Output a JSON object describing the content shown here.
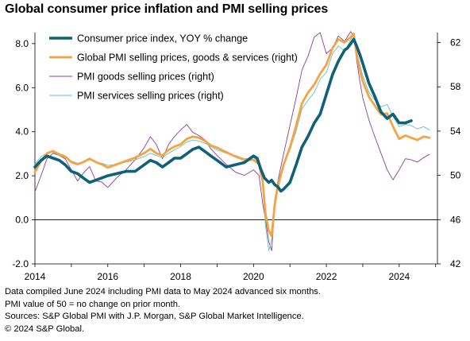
{
  "title": "Global consumer price inflation and PMI selling prices",
  "notes": [
    "Data compiled June 2024 including PMI data to May 2024 advanced six months.",
    "PMI value of 50 = no change on prior month.",
    "Sources: S&P Global PMI with J.P. Morgan, S&P Global Market Intelligence.",
    "© 2024 S&P Global."
  ],
  "colors": {
    "cpi": "#0e6177",
    "pmi": "#f5a343",
    "goods": "#8a3f9c",
    "services": "#63c3bd"
  },
  "chart_data": {
    "type": "line",
    "title": "Global consumer price inflation and PMI selling prices",
    "x_ticks": [
      "2014",
      "2016",
      "2018",
      "2020",
      "2022",
      "2024"
    ],
    "x_range": [
      2014.0,
      2025.05
    ],
    "y_left": {
      "range": [
        -2.0,
        8.5
      ],
      "ticks": [
        "-2.0",
        "0.0",
        "2.0",
        "4.0",
        "6.0",
        "8.0"
      ]
    },
    "y_right": {
      "range": [
        42,
        62.9
      ],
      "ticks": [
        "42",
        "46",
        "50",
        "54",
        "58",
        "62"
      ]
    },
    "legend_placement": "top-left",
    "grid": false,
    "series": [
      {
        "name": "Consumer price index, YOY % change",
        "axis": "left",
        "x": [
          2014.0,
          2014.17,
          2014.33,
          2014.5,
          2014.67,
          2014.83,
          2015.0,
          2015.17,
          2015.33,
          2015.5,
          2015.67,
          2015.83,
          2016.0,
          2016.25,
          2016.5,
          2016.75,
          2017.0,
          2017.17,
          2017.33,
          2017.5,
          2017.67,
          2017.83,
          2018.0,
          2018.17,
          2018.33,
          2018.5,
          2018.67,
          2018.83,
          2019.0,
          2019.25,
          2019.5,
          2019.75,
          2020.0,
          2020.1,
          2020.2,
          2020.3,
          2020.42,
          2020.5,
          2020.58,
          2020.67,
          2020.75,
          2020.83,
          2021.0,
          2021.17,
          2021.33,
          2021.5,
          2021.67,
          2021.83,
          2022.0,
          2022.17,
          2022.33,
          2022.5,
          2022.58,
          2022.67,
          2022.75,
          2022.83,
          2022.92,
          2023.0,
          2023.17,
          2023.33,
          2023.5,
          2023.67,
          2023.83,
          2024.0,
          2024.17,
          2024.33
        ],
        "values": [
          2.4,
          2.7,
          2.9,
          2.8,
          2.7,
          2.5,
          2.2,
          2.1,
          1.9,
          1.7,
          1.8,
          1.9,
          2.0,
          2.1,
          2.2,
          2.2,
          2.5,
          2.7,
          2.6,
          2.4,
          2.6,
          2.8,
          2.8,
          3.0,
          3.2,
          3.3,
          3.1,
          2.9,
          2.7,
          2.4,
          2.5,
          2.6,
          2.9,
          2.8,
          2.3,
          1.9,
          1.7,
          1.8,
          1.6,
          1.5,
          1.3,
          1.4,
          1.7,
          2.5,
          3.3,
          3.8,
          4.4,
          4.8,
          5.7,
          6.6,
          7.2,
          7.7,
          7.8,
          8.0,
          8.2,
          7.9,
          7.5,
          7.1,
          6.2,
          5.6,
          4.9,
          4.6,
          4.8,
          4.4,
          4.4,
          4.5
        ]
      },
      {
        "name": "Global PMI selling prices, goods & services (right)",
        "axis": "right",
        "x": [
          2014.0,
          2014.17,
          2014.33,
          2014.5,
          2014.67,
          2014.83,
          2015.0,
          2015.17,
          2015.33,
          2015.5,
          2015.67,
          2015.83,
          2016.0,
          2016.25,
          2016.5,
          2016.75,
          2017.0,
          2017.17,
          2017.33,
          2017.5,
          2017.67,
          2017.83,
          2018.0,
          2018.17,
          2018.33,
          2018.5,
          2018.67,
          2018.83,
          2019.0,
          2019.25,
          2019.5,
          2019.75,
          2020.0,
          2020.15,
          2020.25,
          2020.33,
          2020.42,
          2020.5,
          2020.58,
          2020.67,
          2020.83,
          2021.0,
          2021.17,
          2021.33,
          2021.5,
          2021.67,
          2021.83,
          2022.0,
          2022.17,
          2022.33,
          2022.5,
          2022.67,
          2022.75,
          2022.83,
          2022.92,
          2023.0,
          2023.17,
          2023.33,
          2023.5,
          2023.67,
          2023.83,
          2024.0,
          2024.17,
          2024.33,
          2024.5,
          2024.67,
          2024.83
        ],
        "values": [
          50.3,
          51.3,
          52.0,
          52.2,
          51.9,
          51.7,
          51.2,
          51.0,
          51.2,
          51.5,
          51.2,
          51.0,
          50.7,
          51.0,
          51.3,
          51.6,
          52.0,
          52.4,
          52.0,
          51.8,
          52.3,
          52.6,
          52.8,
          53.3,
          53.5,
          53.4,
          53.1,
          52.7,
          52.5,
          52.1,
          51.7,
          51.4,
          51.4,
          51.0,
          49.5,
          46.5,
          45.0,
          44.5,
          47.3,
          49.0,
          51.0,
          52.5,
          54.5,
          56.5,
          57.5,
          58.2,
          59.2,
          60.0,
          61.5,
          62.3,
          62.0,
          62.5,
          62.8,
          61.0,
          59.5,
          58.5,
          57.1,
          56.3,
          55.5,
          55.6,
          54.4,
          53.3,
          53.6,
          53.4,
          53.2,
          53.5,
          53.4
        ]
      },
      {
        "name": "PMI goods selling prices (right)",
        "axis": "right",
        "x": [
          2014.0,
          2014.17,
          2014.33,
          2014.5,
          2014.67,
          2014.83,
          2015.0,
          2015.17,
          2015.33,
          2015.5,
          2015.67,
          2015.83,
          2016.0,
          2016.25,
          2016.5,
          2016.75,
          2017.0,
          2017.17,
          2017.33,
          2017.5,
          2017.67,
          2017.83,
          2018.0,
          2018.17,
          2018.33,
          2018.5,
          2018.67,
          2018.83,
          2019.0,
          2019.25,
          2019.5,
          2019.75,
          2020.0,
          2020.15,
          2020.25,
          2020.33,
          2020.42,
          2020.5,
          2020.58,
          2020.67,
          2020.83,
          2021.0,
          2021.17,
          2021.33,
          2021.5,
          2021.67,
          2021.83,
          2022.0,
          2022.17,
          2022.33,
          2022.5,
          2022.67,
          2022.75,
          2022.83,
          2022.92,
          2023.0,
          2023.17,
          2023.33,
          2023.5,
          2023.67,
          2023.83,
          2024.0,
          2024.17,
          2024.33,
          2024.5,
          2024.67,
          2024.83
        ],
        "values": [
          48.5,
          50.0,
          51.5,
          52.0,
          51.8,
          51.5,
          50.5,
          49.5,
          50.2,
          50.8,
          49.5,
          49.4,
          48.9,
          49.8,
          50.5,
          51.4,
          52.5,
          53.5,
          52.8,
          51.5,
          52.8,
          53.5,
          54.1,
          54.6,
          53.9,
          53.6,
          53.2,
          52.4,
          51.8,
          51.0,
          50.3,
          50.0,
          50.5,
          50.0,
          47.5,
          46.0,
          44.0,
          43.2,
          47.0,
          49.5,
          52.0,
          54.5,
          57.0,
          59.5,
          60.8,
          62.5,
          62.9,
          61.0,
          61.5,
          62.6,
          62.1,
          63.0,
          62.5,
          60.5,
          58.5,
          57.0,
          55.0,
          53.5,
          52.0,
          50.5,
          49.6,
          50.5,
          51.5,
          51.4,
          51.2,
          51.6,
          51.9
        ]
      },
      {
        "name": "PMI services selling prices (right)",
        "axis": "right",
        "x": [
          2014.0,
          2014.17,
          2014.33,
          2014.5,
          2014.67,
          2014.83,
          2015.0,
          2015.17,
          2015.33,
          2015.5,
          2015.67,
          2015.83,
          2016.0,
          2016.25,
          2016.5,
          2016.75,
          2017.0,
          2017.17,
          2017.33,
          2017.5,
          2017.67,
          2017.83,
          2018.0,
          2018.17,
          2018.33,
          2018.5,
          2018.67,
          2018.83,
          2019.0,
          2019.25,
          2019.5,
          2019.75,
          2020.0,
          2020.15,
          2020.25,
          2020.33,
          2020.42,
          2020.5,
          2020.58,
          2020.67,
          2020.83,
          2021.0,
          2021.17,
          2021.33,
          2021.5,
          2021.67,
          2021.83,
          2022.0,
          2022.17,
          2022.33,
          2022.5,
          2022.67,
          2022.75,
          2022.83,
          2022.92,
          2023.0,
          2023.17,
          2023.33,
          2023.5,
          2023.67,
          2023.83,
          2024.0,
          2024.17,
          2024.33,
          2024.5,
          2024.67,
          2024.83
        ],
        "values": [
          51.0,
          51.7,
          52.0,
          52.1,
          51.8,
          51.6,
          51.3,
          51.1,
          51.2,
          51.4,
          51.2,
          51.1,
          50.9,
          51.0,
          51.2,
          51.4,
          51.7,
          52.0,
          51.8,
          51.6,
          52.0,
          52.3,
          52.6,
          53.0,
          53.2,
          53.1,
          52.9,
          52.6,
          52.3,
          52.0,
          51.8,
          51.5,
          51.6,
          51.2,
          49.7,
          45.5,
          43.2,
          44.2,
          47.8,
          49.5,
          51.0,
          52.3,
          54.0,
          56.0,
          56.8,
          57.5,
          58.7,
          59.3,
          61.0,
          61.7,
          61.2,
          62.3,
          62.7,
          61.2,
          60.0,
          59.0,
          57.5,
          56.8,
          56.2,
          56.4,
          55.3,
          54.4,
          54.6,
          54.5,
          54.2,
          54.4,
          54.1
        ]
      }
    ]
  }
}
